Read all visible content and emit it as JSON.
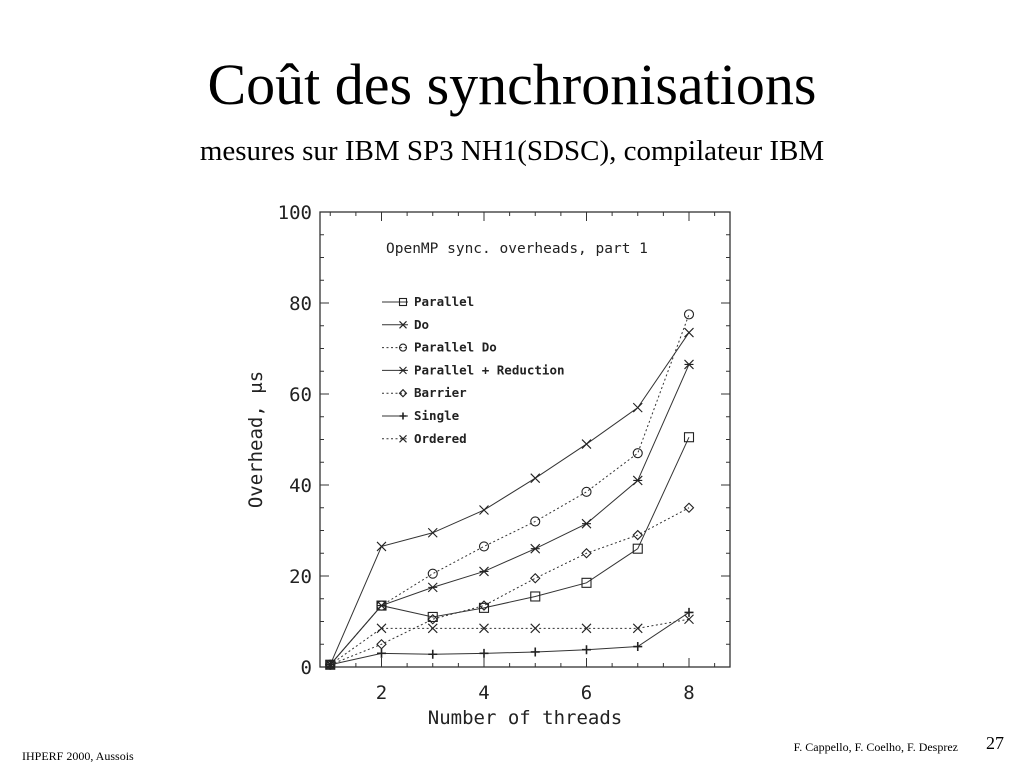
{
  "slide": {
    "title": "Coût des synchronisations",
    "subtitle": "mesures sur IBM SP3 NH1(SDSC), compilateur IBM",
    "footer_left": "IHPERF 2000, Aussois",
    "footer_right": "F. Cappello, F. Coelho, F. Desprez",
    "page_number": "27"
  },
  "chart_data": {
    "type": "line",
    "title": "OpenMP sync. overheads, part 1",
    "xlabel": "Number of threads",
    "ylabel": "Overhead, μs",
    "xlim": [
      0.8,
      8.8
    ],
    "ylim": [
      0,
      100
    ],
    "xticks": [
      2,
      4,
      6,
      8
    ],
    "yticks": [
      0,
      20,
      40,
      60,
      80,
      100
    ],
    "x": [
      1,
      2,
      3,
      4,
      5,
      6,
      7,
      8
    ],
    "legend_position": "top-left",
    "series": [
      {
        "name": "Parallel",
        "marker": "square",
        "dash": "solid",
        "values": [
          0.5,
          13.5,
          11,
          13,
          15.5,
          18.5,
          26,
          50.5
        ]
      },
      {
        "name": "Do",
        "marker": "x",
        "dash": "solid",
        "values": [
          0.5,
          26.5,
          29.5,
          34.5,
          41.5,
          49,
          57,
          73.5
        ]
      },
      {
        "name": "Parallel Do",
        "marker": "circle",
        "dash": "dotted",
        "values": [
          0.5,
          13.5,
          20.5,
          26.5,
          32,
          38.5,
          47,
          77.5
        ]
      },
      {
        "name": "Parallel + Reduction",
        "marker": "asterisk",
        "dash": "solid",
        "values": [
          0.5,
          13.5,
          17.5,
          21,
          26,
          31.5,
          41,
          66.5
        ]
      },
      {
        "name": "Barrier",
        "marker": "diamond",
        "dash": "dotted",
        "values": [
          0.5,
          5,
          10.5,
          13.5,
          19.5,
          25,
          29,
          35
        ]
      },
      {
        "name": "Single",
        "marker": "plus",
        "dash": "solid",
        "values": [
          0.5,
          3,
          2.8,
          3,
          3.3,
          3.8,
          4.5,
          12
        ]
      },
      {
        "name": "Ordered",
        "marker": "x",
        "dash": "dotted",
        "values": [
          0.5,
          8.5,
          8.5,
          8.5,
          8.5,
          8.5,
          8.5,
          10.5
        ]
      }
    ]
  }
}
